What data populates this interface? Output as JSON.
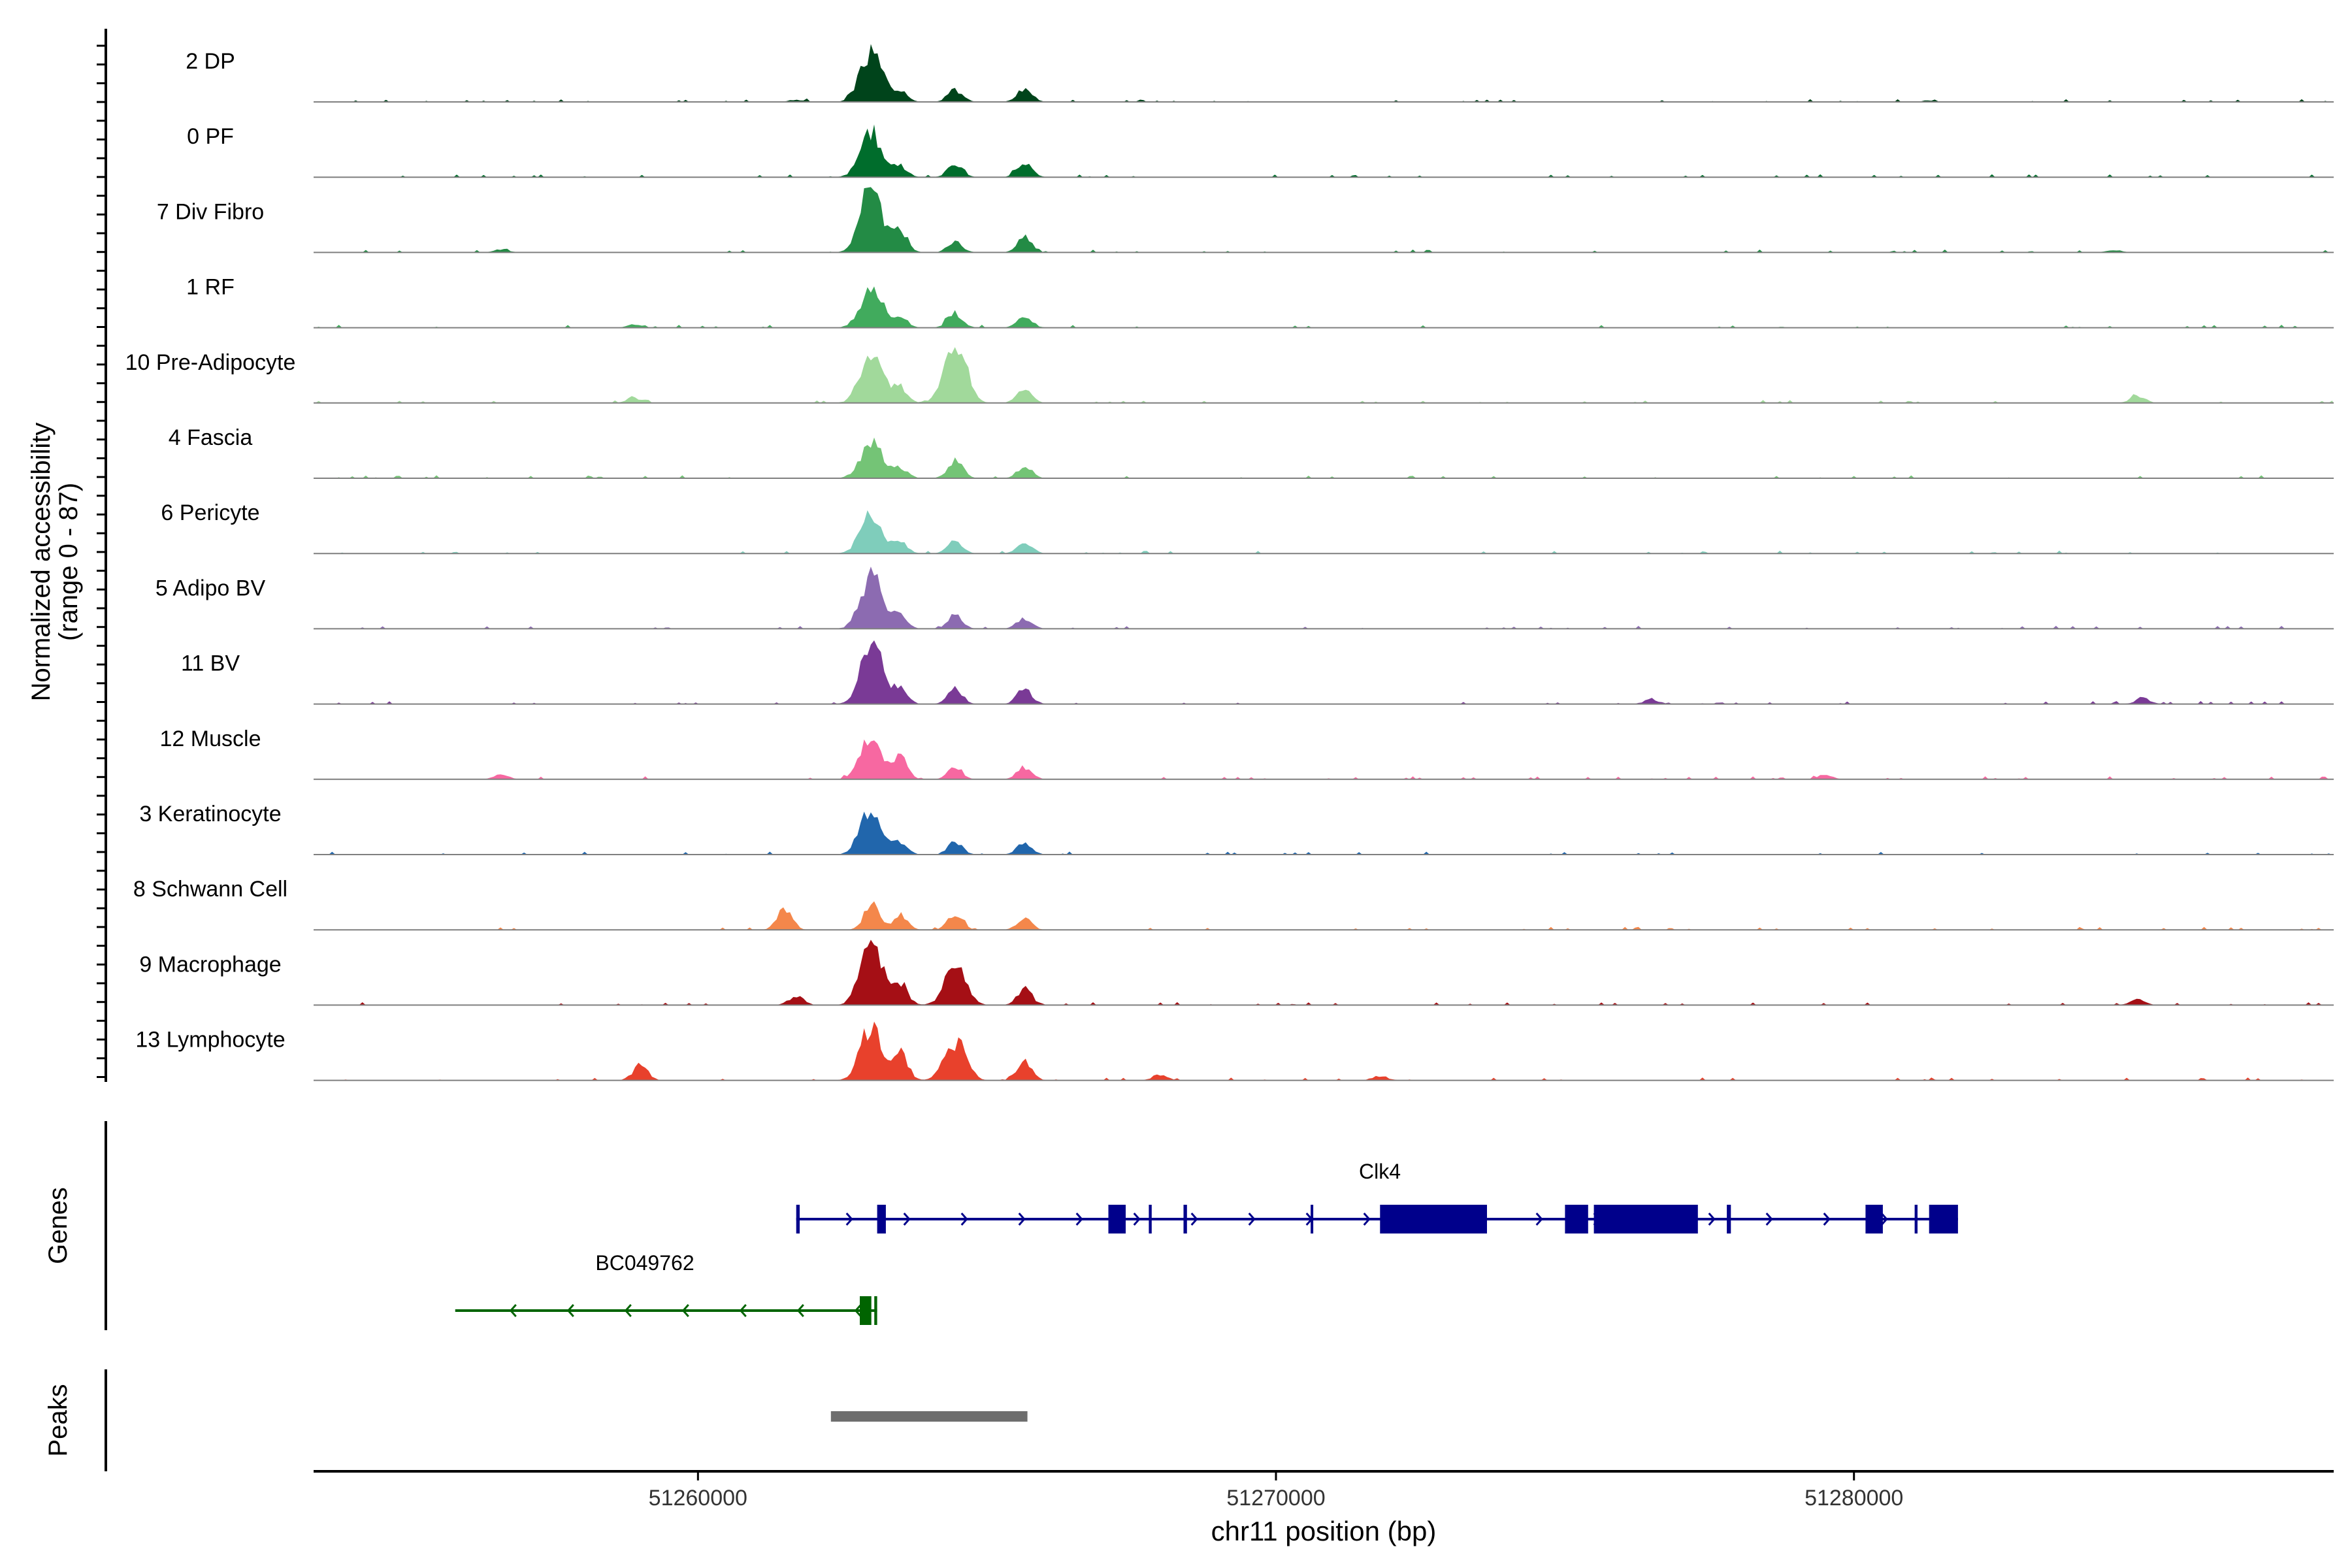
{
  "chart_data": {
    "type": "area",
    "title": "",
    "ylabel_line1": "Normalized accessibility",
    "ylabel_line2": "(range 0 - 87)",
    "y_range": [
      0,
      87
    ],
    "xlabel": "chr11 position (bp)",
    "xlim": [
      51253350,
      51288300
    ],
    "x_ticks": [
      51260000,
      51270000,
      51280000
    ],
    "x_tick_labels": [
      "51260000",
      "51270000",
      "51280000"
    ],
    "tracks": [
      {
        "name": "2 DP",
        "color": "#00441b",
        "peaks": [
          [
            51263000,
            70
          ],
          [
            51263500,
            14
          ],
          [
            51264450,
            16
          ],
          [
            51265650,
            18
          ],
          [
            51261700,
            3
          ],
          [
            51281300,
            2
          ]
        ]
      },
      {
        "name": "0 PF",
        "color": "#006d2c",
        "peaks": [
          [
            51263000,
            60
          ],
          [
            51263500,
            14
          ],
          [
            51264450,
            18
          ],
          [
            51265650,
            18
          ]
        ]
      },
      {
        "name": "7 Div Fibro",
        "color": "#238b45",
        "peaks": [
          [
            51263000,
            87
          ],
          [
            51263500,
            28
          ],
          [
            51264450,
            14
          ],
          [
            51265650,
            20
          ],
          [
            51256600,
            4
          ],
          [
            51284500,
            3
          ]
        ]
      },
      {
        "name": "1 RF",
        "color": "#41ab5d",
        "peaks": [
          [
            51263000,
            55
          ],
          [
            51263500,
            14
          ],
          [
            51264450,
            20
          ],
          [
            51265650,
            16
          ],
          [
            51258900,
            4
          ]
        ]
      },
      {
        "name": "10 Pre-Adipocyte",
        "color": "#a1d99b",
        "peaks": [
          [
            51263000,
            70
          ],
          [
            51263500,
            20
          ],
          [
            51264450,
            80
          ],
          [
            51265650,
            18
          ],
          [
            51258900,
            6
          ],
          [
            51284900,
            10
          ]
        ]
      },
      {
        "name": "4 Fascia",
        "color": "#74c476",
        "peaks": [
          [
            51263000,
            48
          ],
          [
            51263500,
            14
          ],
          [
            51264450,
            24
          ],
          [
            51265650,
            16
          ]
        ]
      },
      {
        "name": "6 Pericyte",
        "color": "#7fcdbb",
        "peaks": [
          [
            51263000,
            54
          ],
          [
            51263500,
            14
          ],
          [
            51264450,
            18
          ],
          [
            51265650,
            16
          ]
        ]
      },
      {
        "name": "5 Adipo BV",
        "color": "#8c6bb1",
        "peaks": [
          [
            51263000,
            72
          ],
          [
            51263500,
            18
          ],
          [
            51264450,
            18
          ],
          [
            51265650,
            14
          ]
        ]
      },
      {
        "name": "11 BV",
        "color": "#7a3a96",
        "peaks": [
          [
            51263000,
            86
          ],
          [
            51263500,
            22
          ],
          [
            51264450,
            20
          ],
          [
            51265650,
            20
          ],
          [
            51276500,
            6
          ],
          [
            51285000,
            8
          ]
        ]
      },
      {
        "name": "12 Muscle",
        "color": "#f768a1",
        "peaks": [
          [
            51263000,
            55
          ],
          [
            51263500,
            30
          ],
          [
            51264450,
            16
          ],
          [
            51265650,
            16
          ],
          [
            51256600,
            6
          ],
          [
            51279500,
            6
          ]
        ]
      },
      {
        "name": "3 Keratinocyte",
        "color": "#2166ac",
        "peaks": [
          [
            51263000,
            66
          ],
          [
            51263500,
            14
          ],
          [
            51264450,
            16
          ],
          [
            51265650,
            16
          ]
        ]
      },
      {
        "name": "8 Schwann Cell",
        "color": "#f4874b",
        "peaks": [
          [
            51261500,
            28
          ],
          [
            51263000,
            34
          ],
          [
            51263500,
            18
          ],
          [
            51264450,
            20
          ],
          [
            51265650,
            14
          ]
        ]
      },
      {
        "name": "9 Macrophage",
        "color": "#a50f15",
        "peaks": [
          [
            51263000,
            87
          ],
          [
            51263500,
            30
          ],
          [
            51264450,
            50
          ],
          [
            51265650,
            22
          ],
          [
            51261700,
            12
          ],
          [
            51284900,
            8
          ]
        ]
      },
      {
        "name": "13 Lymphocyte",
        "color": "#e8412c",
        "peaks": [
          [
            51263000,
            74
          ],
          [
            51263500,
            38
          ],
          [
            51264450,
            52
          ],
          [
            51265650,
            28
          ],
          [
            51259000,
            20
          ],
          [
            51268000,
            8
          ],
          [
            51271800,
            6
          ]
        ]
      }
    ],
    "genes": [
      {
        "name": "Clk4",
        "strand": "+",
        "color": "#00008b",
        "start": 51261700,
        "end": 51281800,
        "exons": [
          [
            51261700,
            51261760
          ],
          [
            51263100,
            51263250
          ],
          [
            51267100,
            51267400
          ],
          [
            51267800,
            51267850
          ],
          [
            51268400,
            51268460
          ],
          [
            51270600,
            51270640
          ],
          [
            51271800,
            51273650
          ],
          [
            51275000,
            51275400
          ],
          [
            51275500,
            51277300
          ],
          [
            51277800,
            51277870
          ],
          [
            51280200,
            51280500
          ],
          [
            51281050,
            51281100
          ],
          [
            51281300,
            51281800
          ]
        ]
      },
      {
        "name": "BC049762",
        "strand": "-",
        "color": "#006400",
        "start": 51255800,
        "end": 51263100,
        "exons": [
          [
            51262800,
            51263000
          ],
          [
            51263050,
            51263100
          ]
        ]
      }
    ],
    "peaks_track": [
      [
        51262300,
        51265700
      ]
    ]
  },
  "panels": {
    "genes_label": "Genes",
    "peaks_label": "Peaks"
  }
}
